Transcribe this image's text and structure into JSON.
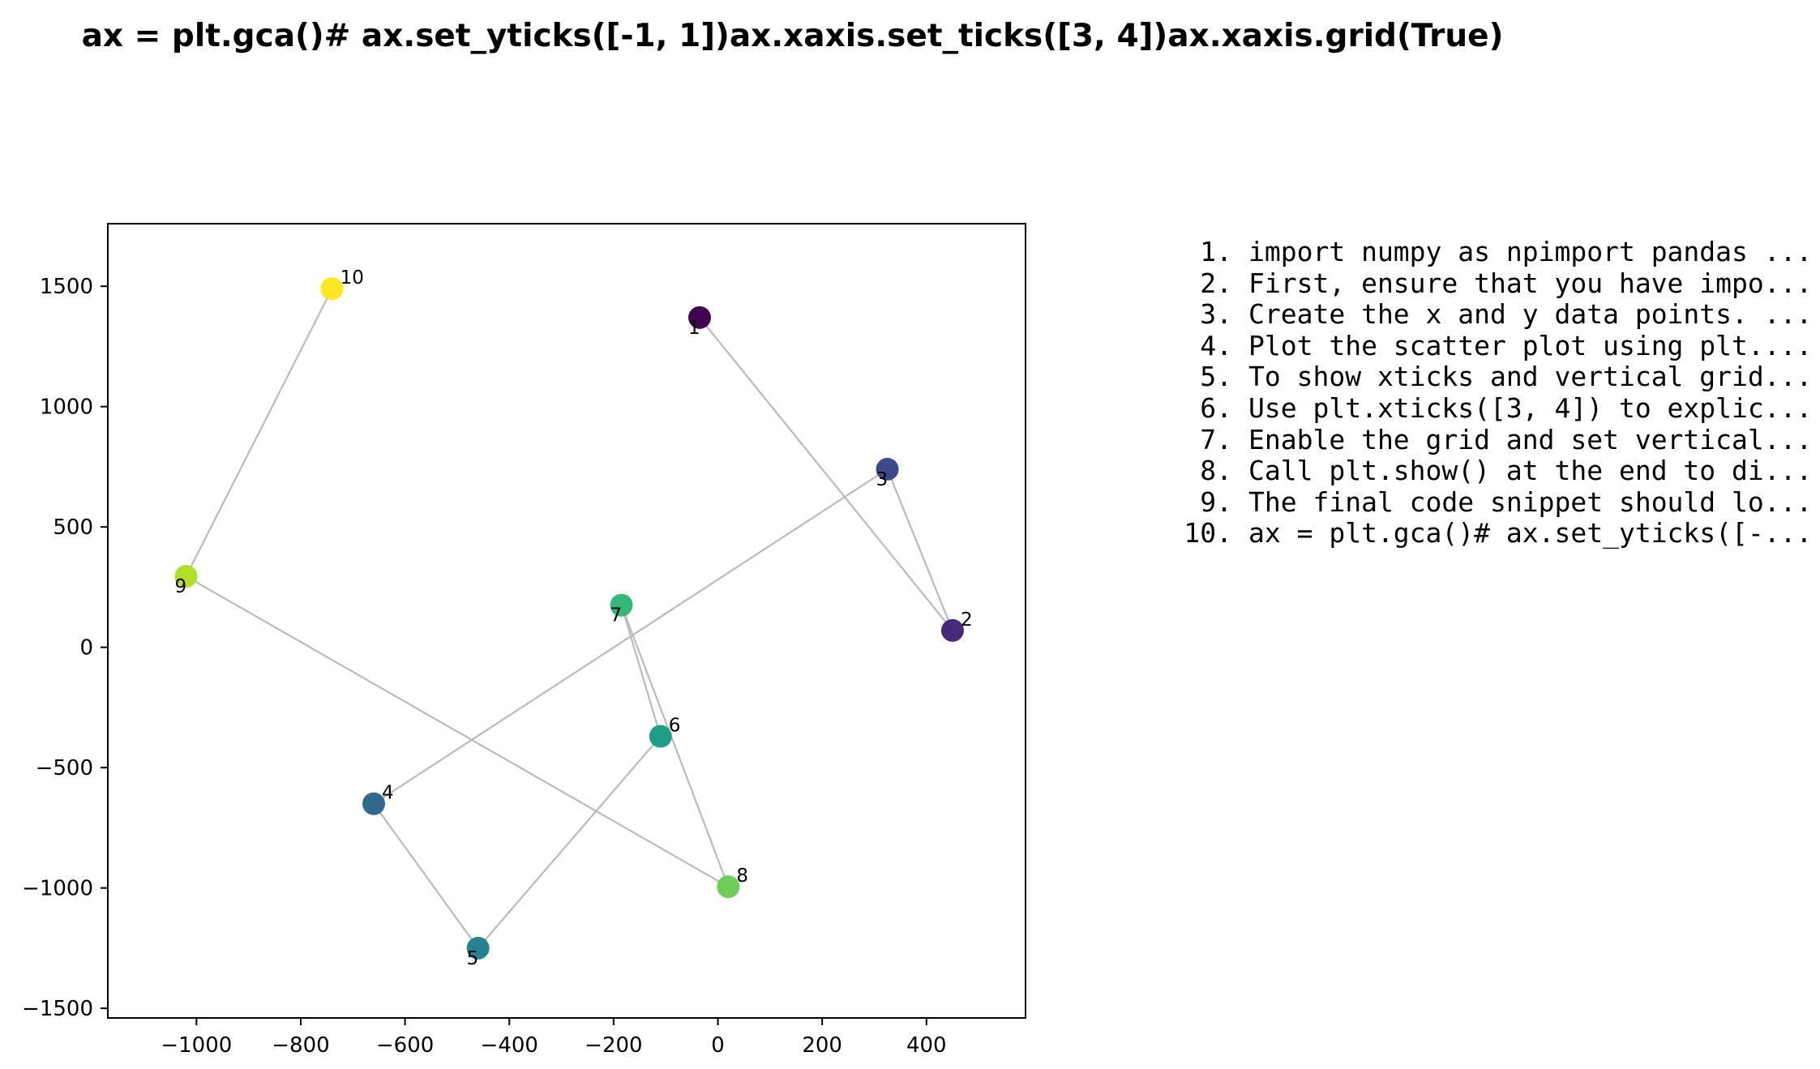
{
  "chart_data": {
    "type": "scatter",
    "title": "ax = plt.gca()# ax.set_yticks([-1, 1])ax.xaxis.set_ticks([3, 4])ax.xaxis.grid(True)",
    "xlabel": "",
    "ylabel": "",
    "xlim": [
      -1170,
      590
    ],
    "ylim": [
      -1540,
      1760
    ],
    "grid": false,
    "connected": true,
    "x_ticks": [
      -1000,
      -800,
      -600,
      -400,
      -200,
      0,
      200,
      400
    ],
    "x_tick_labels": [
      "−1000",
      "−800",
      "−600",
      "−400",
      "−200",
      "0",
      "200",
      "400"
    ],
    "y_ticks": [
      -1500,
      -1000,
      -500,
      0,
      500,
      1000,
      1500
    ],
    "y_tick_labels": [
      "−1500",
      "−1000",
      "−500",
      "0",
      "500",
      "1000",
      "1500"
    ],
    "colormap": "viridis",
    "points": [
      {
        "label": "1",
        "x": -35,
        "y": 1370,
        "color": "#440154"
      },
      {
        "label": "2",
        "x": 450,
        "y": 70,
        "color": "#482878"
      },
      {
        "label": "3",
        "x": 325,
        "y": 740,
        "color": "#3e4989"
      },
      {
        "label": "4",
        "x": -660,
        "y": -650,
        "color": "#31688e"
      },
      {
        "label": "5",
        "x": -460,
        "y": -1250,
        "color": "#26828e"
      },
      {
        "label": "6",
        "x": -110,
        "y": -370,
        "color": "#1f9e89"
      },
      {
        "label": "7",
        "x": -185,
        "y": 175,
        "color": "#35b779"
      },
      {
        "label": "8",
        "x": 20,
        "y": -995,
        "color": "#6ece58"
      },
      {
        "label": "9",
        "x": -1020,
        "y": 295,
        "color": "#b5de2b"
      },
      {
        "label": "10",
        "x": -740,
        "y": 1490,
        "color": "#fde725"
      }
    ]
  },
  "steps": [
    {
      "num": "1.",
      "text": "import numpy as npimport pandas ..."
    },
    {
      "num": "2.",
      "text": "First, ensure that you have impo..."
    },
    {
      "num": "3.",
      "text": "Create the x and y data points. ..."
    },
    {
      "num": "4.",
      "text": "Plot the scatter plot using plt...."
    },
    {
      "num": "5.",
      "text": "To show xticks and vertical grid..."
    },
    {
      "num": "6.",
      "text": "Use plt.xticks([3, 4]) to explic..."
    },
    {
      "num": "7.",
      "text": "Enable the grid and set vertical..."
    },
    {
      "num": "8.",
      "text": "Call plt.show() at the end to di..."
    },
    {
      "num": "9.",
      "text": "The final code snippet should lo..."
    },
    {
      "num": "10.",
      "text": "ax = plt.gca()# ax.set_yticks([-..."
    }
  ]
}
